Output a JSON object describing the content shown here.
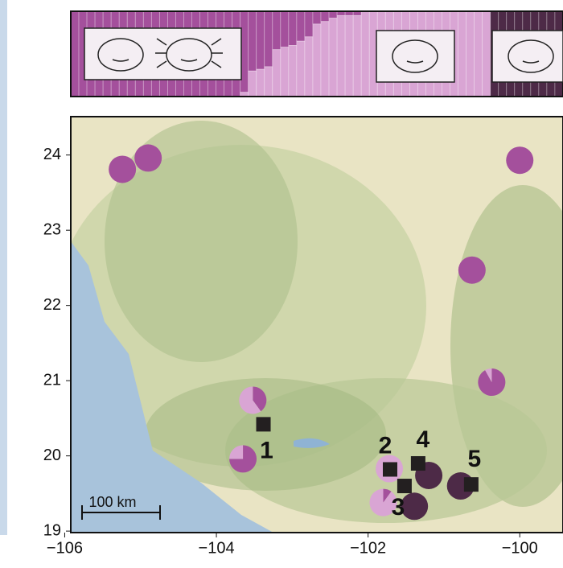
{
  "chart_data": {
    "type": "map",
    "xlim": [
      -105.92,
      -99.43
    ],
    "ylim": [
      18.98,
      24.51
    ],
    "xticks": [
      {
        "value": -106,
        "label": "−106"
      },
      {
        "value": -104,
        "label": "−104"
      },
      {
        "value": -102,
        "label": "−102"
      },
      {
        "value": -100,
        "label": "−100"
      }
    ],
    "yticks": [
      19,
      20,
      21,
      22,
      23,
      24
    ],
    "colors": [
      "#a4509c",
      "#d9a5d4",
      "#4d2a47"
    ],
    "populations": {
      "lon": [
        -105.24,
        -104.9,
        -100.0,
        -100.63,
        -100.37,
        -103.52,
        -103.65,
        -101.72,
        -101.2,
        -100.78,
        -101.8,
        -101.39
      ],
      "lat": [
        23.81,
        23.96,
        23.93,
        22.47,
        20.98,
        20.74,
        19.96,
        19.83,
        19.74,
        19.6,
        19.38,
        19.33
      ],
      "fractions": [
        [
          1,
          0,
          0
        ],
        [
          1,
          0,
          0
        ],
        [
          1,
          0,
          0
        ],
        [
          1,
          0,
          0
        ],
        [
          0.92,
          0.08,
          0
        ],
        [
          0.4,
          0.6,
          0
        ],
        [
          0.75,
          0.25,
          0
        ],
        [
          0,
          1,
          0
        ],
        [
          0,
          0,
          1
        ],
        [
          0,
          0,
          1
        ],
        [
          0.1,
          0.9,
          0
        ],
        [
          0,
          0,
          1
        ]
      ]
    },
    "sites": {
      "labels": [
        "1",
        "2",
        "3",
        "4",
        "5"
      ],
      "lon": [
        -103.38,
        -101.71,
        -101.52,
        -101.34,
        -100.64
      ],
      "lat": [
        20.42,
        19.82,
        19.6,
        19.9,
        19.62
      ]
    },
    "scale_bar": {
      "label": "100 km"
    },
    "structure": [
      [
        1,
        0,
        0
      ],
      [
        1,
        0,
        0
      ],
      [
        1,
        0,
        0
      ],
      [
        1,
        0,
        0
      ],
      [
        1,
        0,
        0
      ],
      [
        1,
        0,
        0
      ],
      [
        1,
        0,
        0
      ],
      [
        1,
        0,
        0
      ],
      [
        1,
        0,
        0
      ],
      [
        1,
        0,
        0
      ],
      [
        1,
        0,
        0
      ],
      [
        1,
        0,
        0
      ],
      [
        1,
        0,
        0
      ],
      [
        1,
        0,
        0
      ],
      [
        1,
        0,
        0
      ],
      [
        1,
        0,
        0
      ],
      [
        1,
        0,
        0
      ],
      [
        1,
        0,
        0
      ],
      [
        1,
        0,
        0
      ],
      [
        1,
        0,
        0
      ],
      [
        1,
        0,
        0
      ],
      [
        0.95,
        0.05,
        0
      ],
      [
        0.7,
        0.3,
        0
      ],
      [
        0.68,
        0.32,
        0
      ],
      [
        0.65,
        0.35,
        0
      ],
      [
        0.45,
        0.55,
        0
      ],
      [
        0.42,
        0.58,
        0
      ],
      [
        0.4,
        0.6,
        0
      ],
      [
        0.35,
        0.65,
        0
      ],
      [
        0.3,
        0.7,
        0
      ],
      [
        0.15,
        0.85,
        0
      ],
      [
        0.12,
        0.88,
        0
      ],
      [
        0.08,
        0.92,
        0
      ],
      [
        0.05,
        0.95,
        0
      ],
      [
        0.05,
        0.95,
        0
      ],
      [
        0.05,
        0.95,
        0
      ],
      [
        0,
        1,
        0
      ],
      [
        0,
        1,
        0
      ],
      [
        0,
        1,
        0
      ],
      [
        0,
        1,
        0
      ],
      [
        0,
        1,
        0
      ],
      [
        0,
        1,
        0
      ],
      [
        0,
        1,
        0
      ],
      [
        0,
        1,
        0
      ],
      [
        0,
        1,
        0
      ],
      [
        0,
        1,
        0
      ],
      [
        0,
        1,
        0
      ],
      [
        0,
        1,
        0
      ],
      [
        0,
        1,
        0
      ],
      [
        0,
        1,
        0
      ],
      [
        0,
        1,
        0
      ],
      [
        0,
        1,
        0
      ],
      [
        0,
        0,
        1
      ],
      [
        0,
        0,
        1
      ],
      [
        0,
        0,
        1
      ],
      [
        0,
        0,
        1
      ],
      [
        0,
        0,
        1
      ],
      [
        0,
        0,
        1
      ],
      [
        0,
        0,
        1
      ],
      [
        0,
        0,
        1
      ],
      [
        0,
        0,
        1
      ]
    ]
  }
}
